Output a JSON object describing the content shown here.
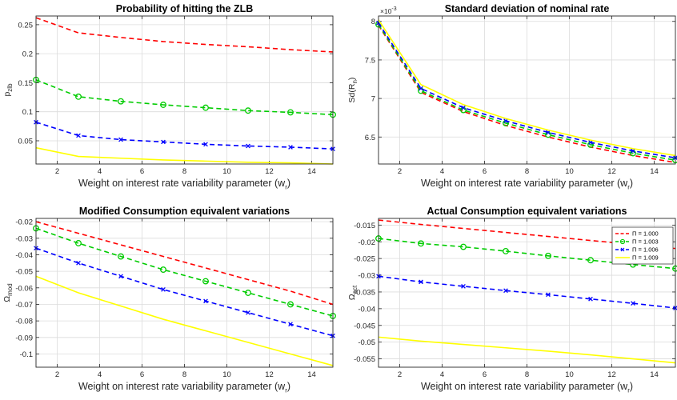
{
  "chart_data": [
    {
      "type": "line",
      "title": "Probability of hitting the ZLB",
      "xlabel": "Weight on interest rate variability parameter (w",
      "xlabel_sub": "r",
      "xlabel_suffix": ")",
      "ylabel": "p",
      "ylabel_sub": "zlb",
      "xlim": [
        1,
        15
      ],
      "ylim": [
        0.01,
        0.265
      ],
      "xticks": [
        2,
        4,
        6,
        8,
        10,
        12,
        14
      ],
      "yticks": [
        0.05,
        0.1,
        0.15,
        0.2,
        0.25
      ],
      "ytick_labels": [
        "0.05",
        "0.1",
        "0.15",
        "0.2",
        "0.25"
      ],
      "grid": true,
      "x": [
        1,
        3,
        5,
        7,
        9,
        11,
        13,
        15
      ],
      "series": [
        {
          "color": "#ff0000",
          "style": "dashed",
          "marker": "none",
          "values": [
            0.262,
            0.236,
            0.228,
            0.221,
            0.216,
            0.212,
            0.207,
            0.203
          ]
        },
        {
          "color": "#00cc00",
          "style": "dashed",
          "marker": "circle",
          "values": [
            0.155,
            0.126,
            0.118,
            0.112,
            0.107,
            0.102,
            0.099,
            0.095
          ]
        },
        {
          "color": "#0000ff",
          "style": "dashed",
          "marker": "x",
          "values": [
            0.082,
            0.059,
            0.052,
            0.048,
            0.044,
            0.041,
            0.039,
            0.036
          ]
        },
        {
          "color": "#ffff00",
          "style": "solid",
          "marker": "none",
          "values": [
            0.038,
            0.023,
            0.02,
            0.017,
            0.015,
            0.013,
            0.012,
            0.01
          ]
        }
      ]
    },
    {
      "type": "line",
      "title": "Standard deviation of nominal rate",
      "xlabel": "Weight on interest rate variability parameter (w",
      "xlabel_sub": "r",
      "xlabel_suffix": ")",
      "ylabel": "Sd(R",
      "ylabel_sub": "n",
      "ylabel_suffix": ")",
      "exponent_label": "×10",
      "exponent_power": "-3",
      "xlim": [
        1,
        15
      ],
      "ylim": [
        6.15,
        8.07
      ],
      "xticks": [
        2,
        4,
        6,
        8,
        10,
        12,
        14
      ],
      "yticks": [
        6.5,
        7,
        7.5,
        8
      ],
      "ytick_labels": [
        "6.5",
        "7",
        "7.5",
        "8"
      ],
      "grid": true,
      "x": [
        1,
        3,
        5,
        7,
        9,
        11,
        13,
        15
      ],
      "series": [
        {
          "color": "#ff0000",
          "style": "dashed",
          "marker": "none",
          "values": [
            7.95,
            7.08,
            6.83,
            6.65,
            6.5,
            6.37,
            6.26,
            6.17
          ]
        },
        {
          "color": "#00cc00",
          "style": "dashed",
          "marker": "circle",
          "values": [
            7.96,
            7.1,
            6.85,
            6.68,
            6.53,
            6.4,
            6.29,
            6.2
          ]
        },
        {
          "color": "#0000ff",
          "style": "dashed",
          "marker": "x",
          "values": [
            7.98,
            7.13,
            6.88,
            6.71,
            6.56,
            6.43,
            6.32,
            6.23
          ]
        },
        {
          "color": "#ffff00",
          "style": "solid",
          "marker": "none",
          "values": [
            8.02,
            7.18,
            6.92,
            6.74,
            6.59,
            6.46,
            6.35,
            6.26
          ]
        }
      ]
    },
    {
      "type": "line",
      "title": "Modified Consumption equivalent variations",
      "xlabel": "Weight on interest rate variability parameter (w",
      "xlabel_sub": "r",
      "xlabel_suffix": ")",
      "ylabel": "Ω",
      "ylabel_sub": "mod",
      "xlim": [
        1,
        15
      ],
      "ylim": [
        -0.108,
        -0.018
      ],
      "xticks": [
        2,
        4,
        6,
        8,
        10,
        12,
        14
      ],
      "yticks": [
        -0.1,
        -0.09,
        -0.08,
        -0.07,
        -0.06,
        -0.05,
        -0.04,
        -0.03,
        -0.02
      ],
      "ytick_labels": [
        "-0.1",
        "-0.09",
        "-0.08",
        "-0.07",
        "-0.06",
        "-0.05",
        "-0.04",
        "-0.03",
        "-0.02"
      ],
      "grid": true,
      "x": [
        1,
        3,
        5,
        7,
        9,
        11,
        13,
        15
      ],
      "series": [
        {
          "color": "#ff0000",
          "style": "dashed",
          "marker": "none",
          "values": [
            -0.02,
            -0.027,
            -0.034,
            -0.041,
            -0.048,
            -0.055,
            -0.062,
            -0.07
          ]
        },
        {
          "color": "#00cc00",
          "style": "dashed",
          "marker": "circle",
          "values": [
            -0.024,
            -0.033,
            -0.041,
            -0.049,
            -0.056,
            -0.063,
            -0.07,
            -0.077
          ]
        },
        {
          "color": "#0000ff",
          "style": "dashed",
          "marker": "x",
          "values": [
            -0.036,
            -0.045,
            -0.053,
            -0.061,
            -0.068,
            -0.075,
            -0.082,
            -0.089
          ]
        },
        {
          "color": "#ffff00",
          "style": "solid",
          "marker": "none",
          "values": [
            -0.053,
            -0.063,
            -0.071,
            -0.079,
            -0.086,
            -0.093,
            -0.1,
            -0.107
          ]
        }
      ]
    },
    {
      "type": "line",
      "title": "Actual Consumption equivalent variations",
      "xlabel": "Weight on interest rate variability parameter (w",
      "xlabel_sub": "r",
      "xlabel_suffix": ")",
      "ylabel": "Ω",
      "ylabel_sub": "act",
      "xlim": [
        1,
        15
      ],
      "ylim": [
        -0.0575,
        -0.013
      ],
      "xticks": [
        2,
        4,
        6,
        8,
        10,
        12,
        14
      ],
      "yticks": [
        -0.055,
        -0.05,
        -0.045,
        -0.04,
        -0.035,
        -0.03,
        -0.025,
        -0.02,
        -0.015
      ],
      "ytick_labels": [
        "-0.055",
        "-0.05",
        "-0.045",
        "-0.04",
        "-0.035",
        "-0.03",
        "-0.025",
        "-0.02",
        "-0.015"
      ],
      "grid": true,
      "legend_position": "top-right",
      "x": [
        1,
        3,
        5,
        7,
        9,
        11,
        13,
        15
      ],
      "series": [
        {
          "name": "Π = 1.000",
          "color": "#ff0000",
          "style": "dashed",
          "marker": "none",
          "values": [
            -0.0135,
            -0.0148,
            -0.016,
            -0.0172,
            -0.0184,
            -0.0196,
            -0.0208,
            -0.022
          ]
        },
        {
          "name": "Π = 1.003",
          "color": "#00cc00",
          "style": "dashed",
          "marker": "circle",
          "values": [
            -0.019,
            -0.0205,
            -0.0215,
            -0.0228,
            -0.0242,
            -0.0255,
            -0.0268,
            -0.028
          ]
        },
        {
          "name": "Π = 1.006",
          "color": "#0000ff",
          "style": "dashed",
          "marker": "x",
          "values": [
            -0.0303,
            -0.032,
            -0.0333,
            -0.0346,
            -0.0358,
            -0.0371,
            -0.0384,
            -0.0398
          ]
        },
        {
          "name": "Π = 1.009",
          "color": "#ffff00",
          "style": "solid",
          "marker": "none",
          "values": [
            -0.0485,
            -0.0497,
            -0.0507,
            -0.0517,
            -0.0527,
            -0.0538,
            -0.055,
            -0.0562
          ]
        }
      ]
    }
  ]
}
